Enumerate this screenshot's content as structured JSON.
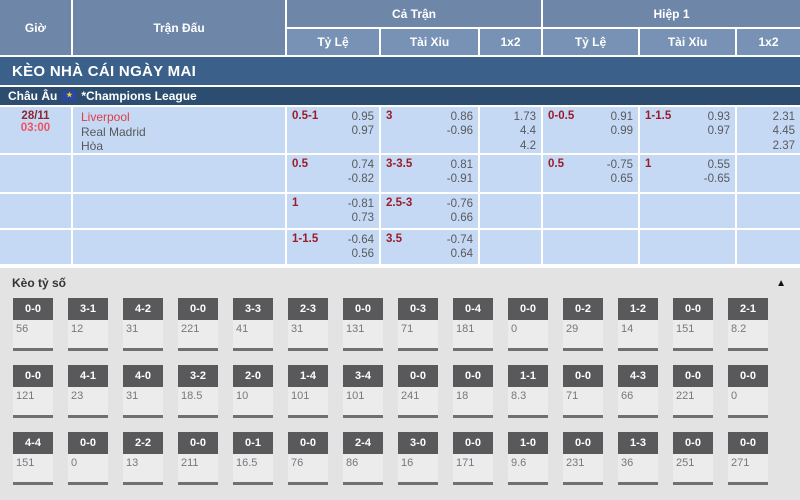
{
  "colors": {
    "header_blue": "#6e87a9",
    "subheader_blue": "#7892b5",
    "banner_blue": "#3b618b",
    "league_navy": "#2c4d6f",
    "cell_blue": "#c6d9f4",
    "handicap_maroon": "#9b1c29",
    "time_red": "#ef5360",
    "date_maroon": "#8c2633",
    "team_red": "#e03c44",
    "odds_gray": "#58595b",
    "score_header_gray": "#59595b"
  },
  "header": {
    "col_time": "Giờ",
    "col_match": "Trận Đấu",
    "col_fulltime": "Cả Trận",
    "col_firsthalf": "Hiệp 1",
    "sub_handicap": "Tỷ Lệ",
    "sub_overunder": "Tài Xỉu",
    "sub_1x2": "1x2"
  },
  "banner": {
    "title": "KÈO NHÀ CÁI NGÀY MAI"
  },
  "league": {
    "region": "Châu Âu",
    "name": "*Champions League",
    "flag_glyph": "★"
  },
  "match": {
    "date": "28/11",
    "time": "03:00",
    "home": "Liverpool",
    "away": "Real Madrid",
    "draw_label": "Hòa",
    "rows": [
      {
        "ft": {
          "hdp": "0.5-1",
          "hdp_odds": [
            "0.95",
            "0.97"
          ],
          "ou": "3",
          "ou_odds": [
            "0.86",
            "-0.96"
          ],
          "x12": [
            "1.73",
            "4.4",
            "4.2"
          ]
        },
        "h1": {
          "hdp": "0-0.5",
          "hdp_odds": [
            "0.91",
            "0.99"
          ],
          "ou": "1-1.5",
          "ou_odds": [
            "0.93",
            "0.97"
          ],
          "x12": [
            "2.31",
            "4.45",
            "2.37"
          ]
        }
      },
      {
        "ft": {
          "hdp": "0.5",
          "hdp_odds": [
            "0.74",
            "-0.82"
          ],
          "ou": "3-3.5",
          "ou_odds": [
            "0.81",
            "-0.91"
          ],
          "x12": []
        },
        "h1": {
          "hdp": "0.5",
          "hdp_odds": [
            "-0.75",
            "0.65"
          ],
          "ou": "1",
          "ou_odds": [
            "0.55",
            "-0.65"
          ],
          "x12": []
        }
      },
      {
        "ft": {
          "hdp": "1",
          "hdp_odds": [
            "-0.81",
            "0.73"
          ],
          "ou": "2.5-3",
          "ou_odds": [
            "-0.76",
            "0.66"
          ],
          "x12": []
        },
        "h1": {
          "hdp": "",
          "hdp_odds": [],
          "ou": "",
          "ou_odds": [],
          "x12": []
        }
      },
      {
        "ft": {
          "hdp": "1-1.5",
          "hdp_odds": [
            "-0.64",
            "0.56"
          ],
          "ou": "3.5",
          "ou_odds": [
            "-0.74",
            "0.64"
          ],
          "x12": []
        },
        "h1": {
          "hdp": "",
          "hdp_odds": [],
          "ou": "",
          "ou_odds": [],
          "x12": []
        }
      }
    ]
  },
  "score_section": {
    "title": "Kèo tỷ số",
    "collapse_icon": "▲",
    "rows": [
      [
        {
          "score": "0-0",
          "odds": "56"
        },
        {
          "score": "3-1",
          "odds": "12"
        },
        {
          "score": "4-2",
          "odds": "31"
        },
        {
          "score": "0-0",
          "odds": "221"
        },
        {
          "score": "3-3",
          "odds": "41"
        },
        {
          "score": "2-3",
          "odds": "31"
        },
        {
          "score": "0-0",
          "odds": "131"
        },
        {
          "score": "0-3",
          "odds": "71"
        },
        {
          "score": "0-4",
          "odds": "181"
        },
        {
          "score": "0-0",
          "odds": "0"
        },
        {
          "score": "0-2",
          "odds": "29"
        },
        {
          "score": "1-2",
          "odds": "14"
        },
        {
          "score": "0-0",
          "odds": "151"
        },
        {
          "score": "2-1",
          "odds": "8.2"
        }
      ],
      [
        {
          "score": "0-0",
          "odds": "121"
        },
        {
          "score": "4-1",
          "odds": "23"
        },
        {
          "score": "4-0",
          "odds": "31"
        },
        {
          "score": "3-2",
          "odds": "18.5"
        },
        {
          "score": "2-0",
          "odds": "10"
        },
        {
          "score": "1-4",
          "odds": "101"
        },
        {
          "score": "3-4",
          "odds": "101"
        },
        {
          "score": "0-0",
          "odds": "241"
        },
        {
          "score": "0-0",
          "odds": "18"
        },
        {
          "score": "1-1",
          "odds": "8.3"
        },
        {
          "score": "0-0",
          "odds": "71"
        },
        {
          "score": "4-3",
          "odds": "66"
        },
        {
          "score": "0-0",
          "odds": "221"
        },
        {
          "score": "0-0",
          "odds": "0"
        }
      ],
      [
        {
          "score": "4-4",
          "odds": "151"
        },
        {
          "score": "0-0",
          "odds": "0"
        },
        {
          "score": "2-2",
          "odds": "13"
        },
        {
          "score": "0-0",
          "odds": "211"
        },
        {
          "score": "0-1",
          "odds": "16.5"
        },
        {
          "score": "0-0",
          "odds": "76"
        },
        {
          "score": "2-4",
          "odds": "86"
        },
        {
          "score": "3-0",
          "odds": "16"
        },
        {
          "score": "0-0",
          "odds": "171"
        },
        {
          "score": "1-0",
          "odds": "9.6"
        },
        {
          "score": "0-0",
          "odds": "231"
        },
        {
          "score": "1-3",
          "odds": "36"
        },
        {
          "score": "0-0",
          "odds": "251"
        },
        {
          "score": "0-0",
          "odds": "271"
        }
      ]
    ]
  }
}
